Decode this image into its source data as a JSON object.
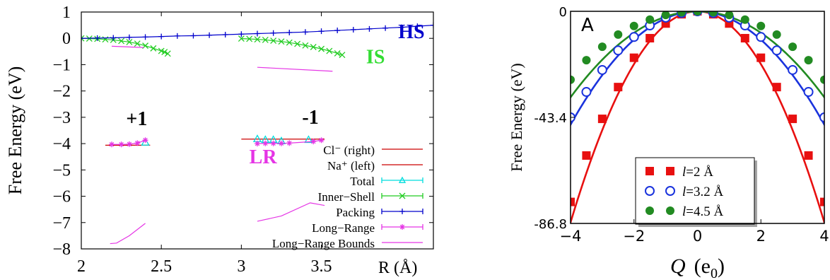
{
  "chart_data": [
    {
      "type": "line",
      "ylabel": "Free Energy (eV)",
      "xlabel": "R (Å)",
      "xlim": [
        2,
        4.2
      ],
      "ylim": [
        -8,
        1
      ],
      "xticks": [
        2,
        2.5,
        3,
        3.5
      ],
      "xtick_labels": [
        "2",
        "2.5",
        "3",
        "3.5"
      ],
      "yticks": [
        1,
        0,
        -1,
        -2,
        -3,
        -4,
        -5,
        -6,
        -7,
        -8
      ],
      "ytick_labels": [
        "1",
        "0",
        "−1",
        "−2",
        "−3",
        "−4",
        "−5",
        "−6",
        "−7",
        "−8"
      ],
      "annotations": [
        {
          "text": "HS",
          "color": "#0000cc",
          "x": 3.98,
          "y": 0.0
        },
        {
          "text": "IS",
          "color": "#33dd33",
          "x": 3.78,
          "y": -0.95
        },
        {
          "text": "+1",
          "color": "#000000",
          "x": 2.28,
          "y": -3.3
        },
        {
          "text": "-1",
          "color": "#000000",
          "x": 3.38,
          "y": -3.25
        },
        {
          "text": "LR",
          "color": "#e535e5",
          "x": 3.05,
          "y": -4.75
        }
      ],
      "legend_position": "bottom-right",
      "series": [
        {
          "name": "Cl⁻ (right)",
          "color": "#cc0000",
          "marker": "none",
          "x": [
            3.0,
            3.52
          ],
          "y": [
            -3.83,
            -3.83
          ]
        },
        {
          "name": "Na⁺ (left)",
          "color": "#cc0000",
          "marker": "none",
          "x": [
            2.15,
            2.43
          ],
          "y": [
            -4.06,
            -4.06
          ]
        },
        {
          "name": "Total",
          "color": "#00dddd",
          "marker": "triangle",
          "x": [
            3.1,
            3.15,
            3.2,
            3.25,
            3.42,
            2.4
          ],
          "y": [
            -3.82,
            -3.85,
            -3.85,
            -3.9,
            -3.85,
            -3.95
          ]
        },
        {
          "name": "Inner−Shell",
          "color": "#22cc22",
          "marker": "x",
          "segments": [
            {
              "x": [
                2.0,
                2.05,
                2.1,
                2.15,
                2.2,
                2.25,
                2.3,
                2.35,
                2.4,
                2.45,
                2.5,
                2.52,
                2.54
              ],
              "y": [
                0.0,
                -0.01,
                -0.02,
                -0.04,
                -0.06,
                -0.1,
                -0.14,
                -0.2,
                -0.28,
                -0.38,
                -0.48,
                -0.52,
                -0.58
              ]
            },
            {
              "x": [
                3.0,
                3.05,
                3.1,
                3.15,
                3.2,
                3.25,
                3.3,
                3.35,
                3.4,
                3.45,
                3.5,
                3.55,
                3.6,
                3.63
              ],
              "y": [
                -0.01,
                -0.02,
                -0.04,
                -0.06,
                -0.09,
                -0.12,
                -0.16,
                -0.21,
                -0.27,
                -0.33,
                -0.4,
                -0.48,
                -0.57,
                -0.63
              ]
            }
          ]
        },
        {
          "name": "Packing",
          "color": "#0000cc",
          "marker": "plus",
          "x": [
            2.0,
            2.1,
            2.2,
            2.3,
            2.4,
            2.5,
            2.6,
            2.7,
            2.8,
            2.9,
            3.0,
            3.1,
            3.2,
            3.3,
            3.4,
            3.5,
            3.6,
            3.7,
            3.8,
            3.9,
            4.0,
            4.1,
            4.2
          ],
          "y": [
            0.0,
            0.01,
            0.02,
            0.04,
            0.05,
            0.07,
            0.09,
            0.1,
            0.12,
            0.14,
            0.16,
            0.18,
            0.2,
            0.22,
            0.24,
            0.27,
            0.3,
            0.33,
            0.36,
            0.39,
            0.42,
            0.46,
            0.5
          ]
        },
        {
          "name": "Long−Range",
          "color": "#e535e5",
          "marker": "star",
          "segments": [
            {
              "x": [
                2.19,
                2.25,
                2.3,
                2.35,
                2.4
              ],
              "y": [
                -4.03,
                -4.03,
                -4.02,
                -3.98,
                -3.87
              ]
            },
            {
              "x": [
                3.1,
                3.15,
                3.2,
                3.25,
                3.3,
                3.45,
                3.5
              ],
              "y": [
                -4.0,
                -3.99,
                -3.99,
                -3.99,
                -3.98,
                -3.92,
                -3.87
              ]
            }
          ]
        },
        {
          "name": "Long−Range Bounds",
          "color": "#e535e5",
          "marker": "none",
          "segments": [
            {
              "x": [
                2.19,
                2.39
              ],
              "y": [
                -0.3,
                -0.35
              ]
            },
            {
              "x": [
                3.1,
                3.57
              ],
              "y": [
                -1.1,
                -1.25
              ]
            },
            {
              "x": [
                2.18,
                2.22,
                2.3,
                2.4
              ],
              "y": [
                -7.8,
                -7.78,
                -7.5,
                -7.03
              ]
            },
            {
              "x": [
                3.1,
                3.25,
                3.43,
                3.52
              ],
              "y": [
                -6.95,
                -6.75,
                -6.25,
                -6.35
              ]
            }
          ]
        }
      ]
    },
    {
      "type": "scatter",
      "panel_label": "A",
      "ylabel": "Free Energy (eV)",
      "xlabel_main": "Q",
      "xlabel_unit": "(e",
      "xlabel_sub": "0",
      "xlabel_close": ")",
      "xlim": [
        -4,
        4
      ],
      "ylim": [
        -86.8,
        0
      ],
      "xticks": [
        -4,
        -2,
        0,
        2,
        4
      ],
      "xtick_labels": [
        "−4",
        "−2",
        "0",
        "2",
        "4"
      ],
      "yticks": [
        0,
        -43.4,
        -86.8
      ],
      "ytick_labels": [
        "0",
        "-43.4",
        "-86.8"
      ],
      "legend_position": "bottom-center",
      "series": [
        {
          "name_prefix": "l",
          "name_suffix": "=2 Å",
          "color": "#e81010",
          "marker": "filled-square",
          "x": [
            -4.0,
            -3.5,
            -3.0,
            -2.5,
            -2.0,
            -1.5,
            -1.0,
            -0.5,
            0.0,
            0.5,
            1.0,
            1.5,
            2.0,
            2.5,
            3.0,
            3.5,
            4.0
          ],
          "y": [
            -78.0,
            -59.0,
            -44.0,
            -31.0,
            -19.0,
            -11.0,
            -5.0,
            -1.2,
            0.0,
            -1.2,
            -5.0,
            -11.0,
            -19.0,
            -31.0,
            -44.0,
            -59.0,
            -78.0
          ],
          "fit_curvature": 5.4
        },
        {
          "name_prefix": "l",
          "name_suffix": "=3.2 Å",
          "color": "#1a33dd",
          "marker": "open-circle",
          "x": [
            -4.0,
            -3.5,
            -3.0,
            -2.5,
            -2.0,
            -1.5,
            -1.0,
            -0.5,
            0.0,
            0.5,
            1.0,
            1.5,
            2.0,
            2.5,
            3.0,
            3.5,
            4.0
          ],
          "y": [
            -43.4,
            -33.0,
            -24.0,
            -16.0,
            -10.5,
            -5.8,
            -2.6,
            -0.7,
            0.0,
            -0.7,
            -2.6,
            -5.8,
            -10.5,
            -16.0,
            -24.0,
            -33.0,
            -43.4
          ],
          "fit_curvature": 2.9
        },
        {
          "name_prefix": "l",
          "name_suffix": "=4.5 Å",
          "color": "#228b22",
          "marker": "filled-circle",
          "x": [
            -4.0,
            -3.5,
            -3.0,
            -2.5,
            -2.0,
            -1.5,
            -1.0,
            -0.5,
            0.0,
            0.5,
            1.0,
            1.5,
            2.0,
            2.5,
            3.0,
            3.5,
            4.0
          ],
          "y": [
            -28.0,
            -20.0,
            -14.5,
            -9.5,
            -6.0,
            -3.4,
            -1.5,
            -0.4,
            0.0,
            -0.4,
            -1.5,
            -3.4,
            -6.0,
            -9.5,
            -14.5,
            -20.0,
            -28.0
          ],
          "fit_curvature": 2.2
        }
      ]
    }
  ]
}
